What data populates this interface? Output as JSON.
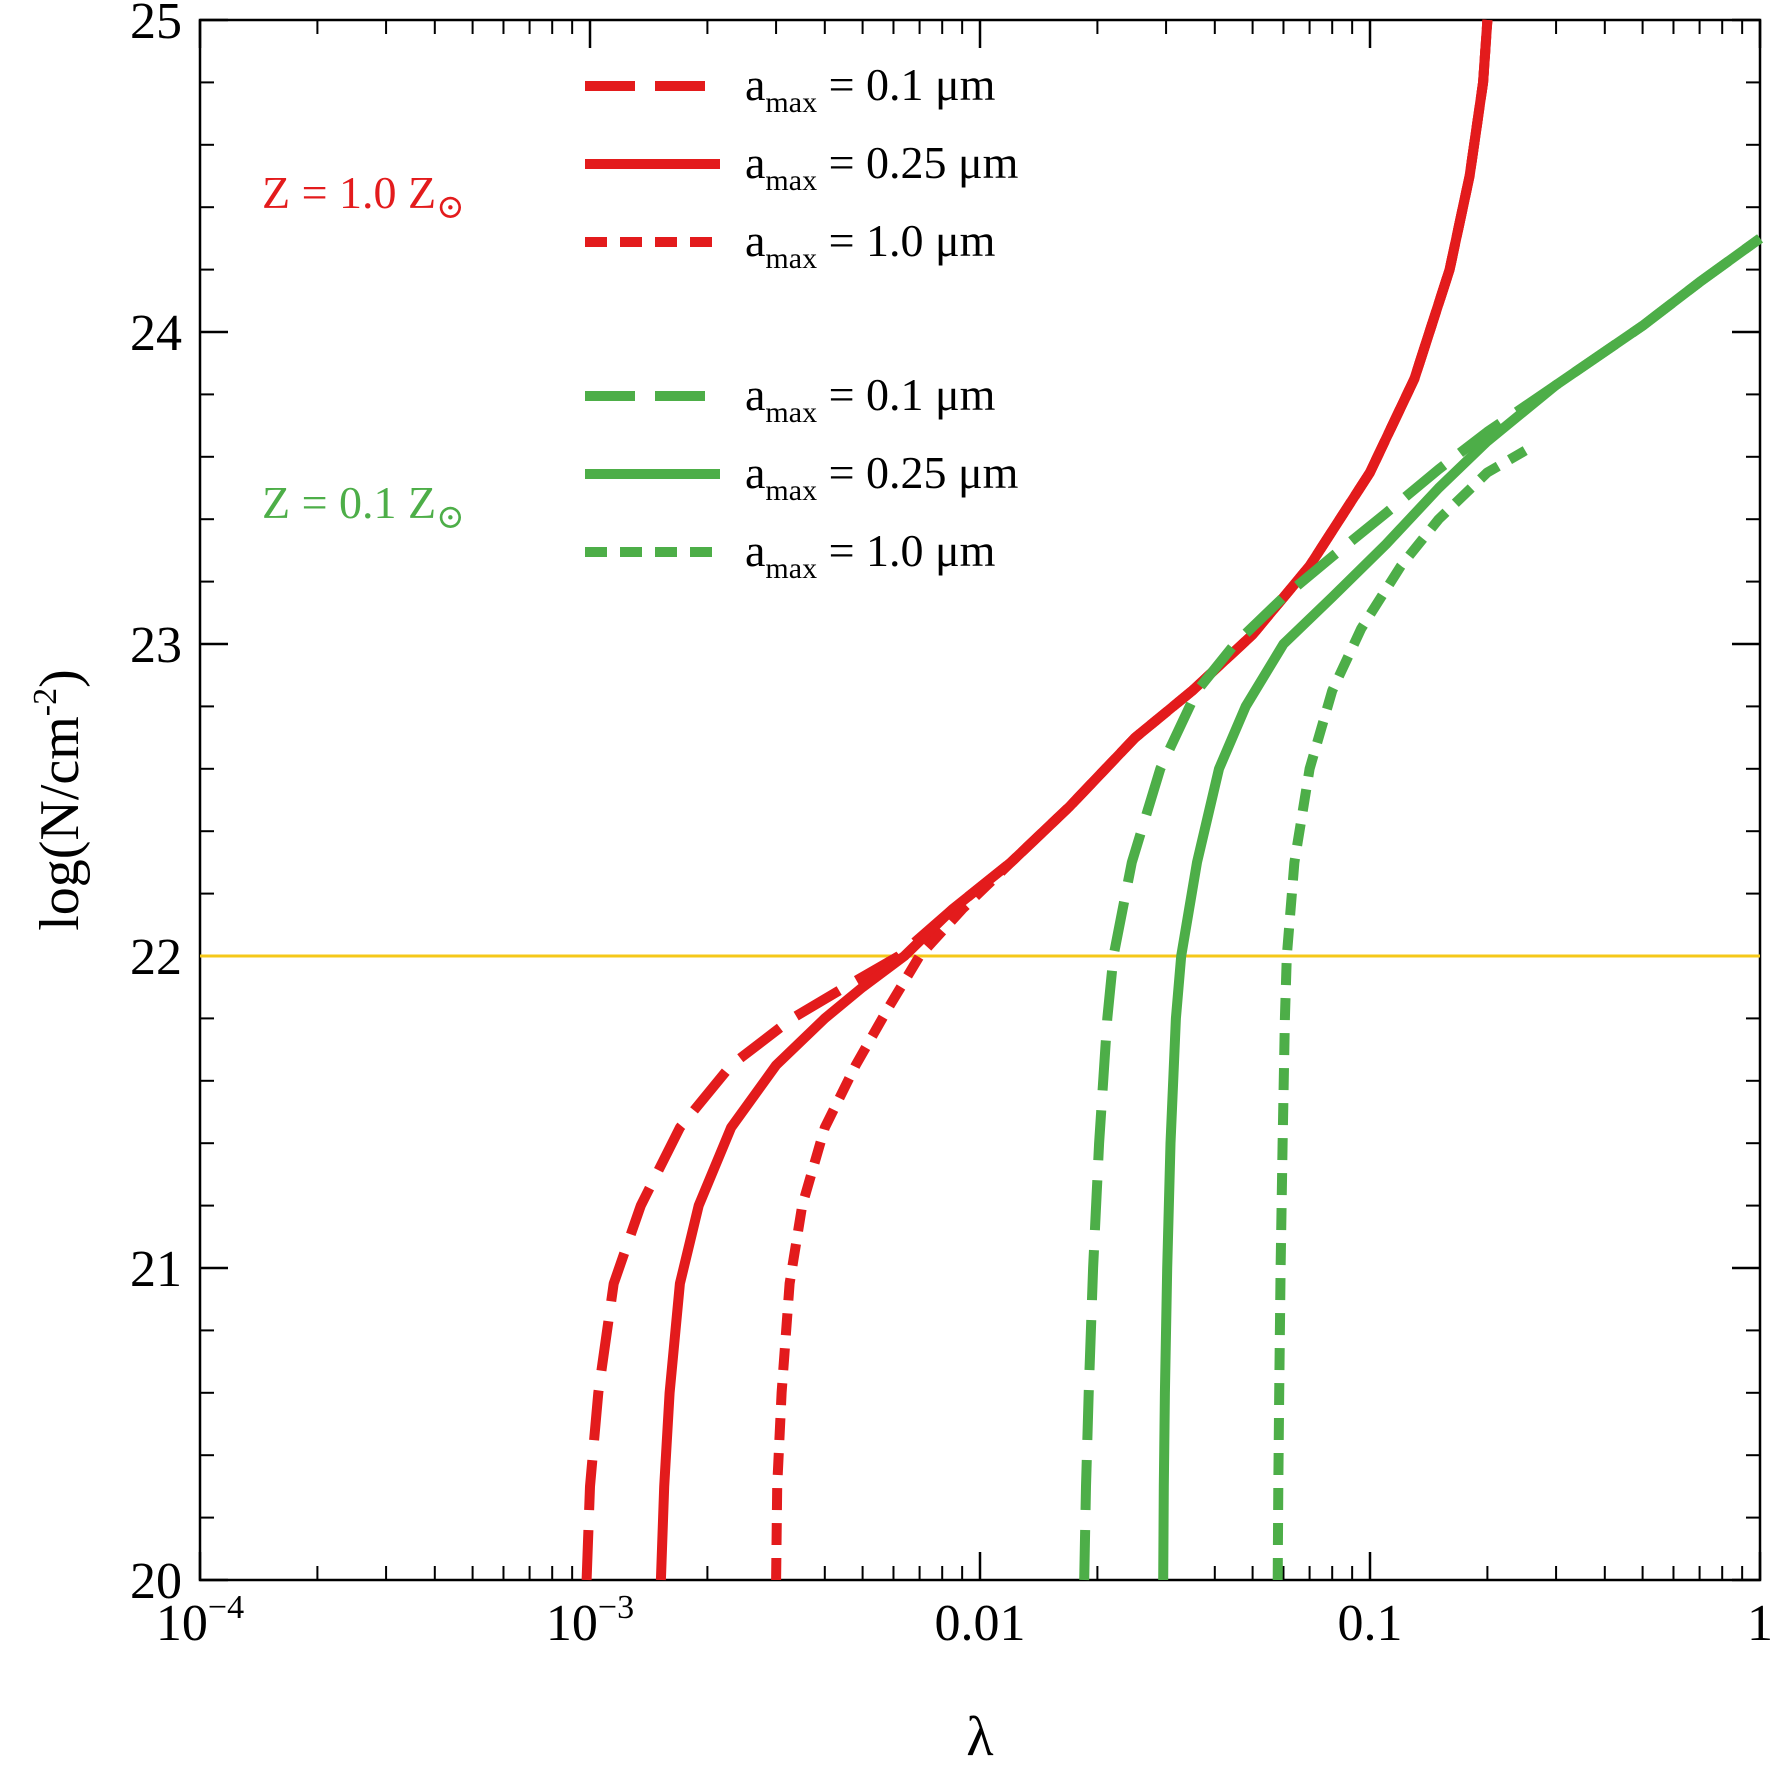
{
  "chart_data": {
    "type": "line",
    "xscale": "log",
    "xlabel": "λ",
    "ylabel": "log(N/cm⁻²)",
    "xlim": [
      0.0001,
      1
    ],
    "ylim": [
      20,
      25
    ],
    "xticks": [
      {
        "value": 0.0001,
        "base": "10",
        "exp": "−4"
      },
      {
        "value": 0.001,
        "base": "10",
        "exp": "−3"
      },
      {
        "value": 0.01,
        "label": "0.01"
      },
      {
        "value": 0.1,
        "label": "0.1"
      },
      {
        "value": 1,
        "label": "1"
      }
    ],
    "yticks": [
      20,
      21,
      22,
      23,
      24,
      25
    ],
    "ylabel_parts": {
      "pre": "log(N/cm",
      "sup": "-2",
      "post": ")"
    },
    "reference_line": {
      "y": 22,
      "color": "#f5c81a"
    },
    "groups": [
      {
        "label": "Z = 1.0 Z",
        "sun_symbol": "⊙",
        "color": "#e31b1c"
      },
      {
        "label": "Z = 0.1 Z",
        "sun_symbol": "⊙",
        "color": "#4dae48"
      }
    ],
    "legend_label_parts": {
      "a": "a",
      "sub": "max"
    },
    "series": [
      {
        "group": 0,
        "style": "dashed",
        "color": "#e31b1c",
        "legend": "= 0.1 μm",
        "points": [
          [
            0.00098,
            20
          ],
          [
            0.001,
            20.3
          ],
          [
            0.00105,
            20.6
          ],
          [
            0.00115,
            20.95
          ],
          [
            0.00135,
            21.2
          ],
          [
            0.0017,
            21.45
          ],
          [
            0.0023,
            21.65
          ],
          [
            0.0033,
            21.8
          ],
          [
            0.0045,
            21.9
          ],
          [
            0.0062,
            22
          ],
          [
            0.0085,
            22.15
          ],
          [
            0.012,
            22.3
          ],
          [
            0.017,
            22.48
          ],
          [
            0.025,
            22.7
          ],
          [
            0.035,
            22.85
          ],
          [
            0.05,
            23.03
          ],
          [
            0.07,
            23.25
          ],
          [
            0.1,
            23.55
          ],
          [
            0.13,
            23.85
          ],
          [
            0.16,
            24.2
          ],
          [
            0.18,
            24.5
          ],
          [
            0.195,
            24.8
          ],
          [
            0.2,
            25
          ]
        ]
      },
      {
        "group": 0,
        "style": "solid",
        "color": "#e31b1c",
        "legend": "= 0.25 μm",
        "points": [
          [
            0.00152,
            20
          ],
          [
            0.00155,
            20.3
          ],
          [
            0.0016,
            20.6
          ],
          [
            0.0017,
            20.95
          ],
          [
            0.0019,
            21.2
          ],
          [
            0.0023,
            21.45
          ],
          [
            0.003,
            21.65
          ],
          [
            0.004,
            21.8
          ],
          [
            0.005,
            21.9
          ],
          [
            0.0064,
            22
          ],
          [
            0.0085,
            22.15
          ],
          [
            0.012,
            22.3
          ],
          [
            0.017,
            22.48
          ],
          [
            0.025,
            22.7
          ],
          [
            0.035,
            22.85
          ],
          [
            0.05,
            23.03
          ],
          [
            0.07,
            23.25
          ],
          [
            0.1,
            23.55
          ],
          [
            0.13,
            23.85
          ],
          [
            0.16,
            24.2
          ],
          [
            0.18,
            24.5
          ],
          [
            0.195,
            24.8
          ],
          [
            0.2,
            25
          ]
        ]
      },
      {
        "group": 0,
        "style": "dotted",
        "color": "#e31b1c",
        "legend": "= 1.0 μm",
        "points": [
          [
            0.003,
            20
          ],
          [
            0.00302,
            20.3
          ],
          [
            0.0031,
            20.6
          ],
          [
            0.00325,
            20.95
          ],
          [
            0.0035,
            21.2
          ],
          [
            0.004,
            21.45
          ],
          [
            0.0048,
            21.65
          ],
          [
            0.0058,
            21.83
          ],
          [
            0.007,
            22
          ],
          [
            0.009,
            22.15
          ],
          [
            0.012,
            22.3
          ],
          [
            0.017,
            22.48
          ],
          [
            0.025,
            22.7
          ],
          [
            0.035,
            22.85
          ],
          [
            0.05,
            23.03
          ],
          [
            0.07,
            23.25
          ],
          [
            0.1,
            23.55
          ],
          [
            0.13,
            23.85
          ],
          [
            0.16,
            24.2
          ],
          [
            0.18,
            24.5
          ],
          [
            0.195,
            24.8
          ],
          [
            0.2,
            25
          ]
        ]
      },
      {
        "group": 1,
        "style": "dashed",
        "color": "#4dae48",
        "legend": "= 0.1 μm",
        "points": [
          [
            0.0185,
            20
          ],
          [
            0.0187,
            20.3
          ],
          [
            0.019,
            20.6
          ],
          [
            0.0195,
            21
          ],
          [
            0.0202,
            21.4
          ],
          [
            0.0212,
            21.8
          ],
          [
            0.022,
            22
          ],
          [
            0.0245,
            22.3
          ],
          [
            0.029,
            22.6
          ],
          [
            0.036,
            22.85
          ],
          [
            0.045,
            23
          ],
          [
            0.06,
            23.15
          ],
          [
            0.08,
            23.28
          ],
          [
            0.11,
            23.42
          ],
          [
            0.15,
            23.56
          ],
          [
            0.2,
            23.68
          ],
          [
            0.3,
            23.83
          ],
          [
            0.5,
            24.02
          ],
          [
            0.7,
            24.16
          ],
          [
            1,
            24.3
          ]
        ]
      },
      {
        "group": 1,
        "style": "solid",
        "color": "#4dae48",
        "legend": "= 0.25 μm",
        "points": [
          [
            0.0295,
            20
          ],
          [
            0.0296,
            20.3
          ],
          [
            0.0298,
            20.6
          ],
          [
            0.0302,
            21
          ],
          [
            0.0308,
            21.4
          ],
          [
            0.0318,
            21.8
          ],
          [
            0.0328,
            22
          ],
          [
            0.036,
            22.3
          ],
          [
            0.041,
            22.6
          ],
          [
            0.048,
            22.8
          ],
          [
            0.06,
            23
          ],
          [
            0.08,
            23.15
          ],
          [
            0.11,
            23.32
          ],
          [
            0.15,
            23.5
          ],
          [
            0.2,
            23.65
          ],
          [
            0.3,
            23.83
          ],
          [
            0.5,
            24.02
          ],
          [
            0.7,
            24.16
          ],
          [
            1,
            24.3
          ]
        ]
      },
      {
        "group": 1,
        "style": "dotted",
        "color": "#4dae48",
        "legend": "= 1.0 μm",
        "points": [
          [
            0.058,
            20
          ],
          [
            0.0582,
            20.3
          ],
          [
            0.0585,
            20.6
          ],
          [
            0.059,
            21
          ],
          [
            0.0597,
            21.4
          ],
          [
            0.0605,
            21.8
          ],
          [
            0.0612,
            22
          ],
          [
            0.064,
            22.3
          ],
          [
            0.07,
            22.6
          ],
          [
            0.08,
            22.85
          ],
          [
            0.095,
            23.05
          ],
          [
            0.12,
            23.25
          ],
          [
            0.15,
            23.4
          ],
          [
            0.2,
            23.55
          ],
          [
            0.25,
            23.62
          ]
        ]
      }
    ]
  }
}
